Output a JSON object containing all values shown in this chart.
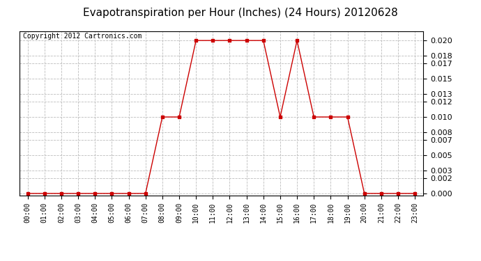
{
  "title": "Evapotranspiration per Hour (Inches) (24 Hours) 20120628",
  "copyright": "Copyright 2012 Cartronics.com",
  "hours": [
    0,
    1,
    2,
    3,
    4,
    5,
    6,
    7,
    8,
    9,
    10,
    11,
    12,
    13,
    14,
    15,
    16,
    17,
    18,
    19,
    20,
    21,
    22,
    23
  ],
  "values": [
    0.0,
    0.0,
    0.0,
    0.0,
    0.0,
    0.0,
    0.0,
    0.0,
    0.01,
    0.01,
    0.02,
    0.02,
    0.02,
    0.02,
    0.02,
    0.01,
    0.02,
    0.01,
    0.01,
    0.01,
    0.0,
    0.0,
    0.0,
    0.0
  ],
  "line_color": "#cc0000",
  "marker": "s",
  "marker_size": 3,
  "grid_color": "#bbbbbb",
  "grid_style": "--",
  "bg_color": "#ffffff",
  "ylim": [
    -0.0003,
    0.0212
  ],
  "yticks": [
    0.0,
    0.002,
    0.003,
    0.005,
    0.007,
    0.008,
    0.01,
    0.012,
    0.013,
    0.015,
    0.017,
    0.018,
    0.02
  ],
  "title_fontsize": 11,
  "copyright_fontsize": 7,
  "tick_fontsize": 7,
  "ytick_fontsize": 8
}
